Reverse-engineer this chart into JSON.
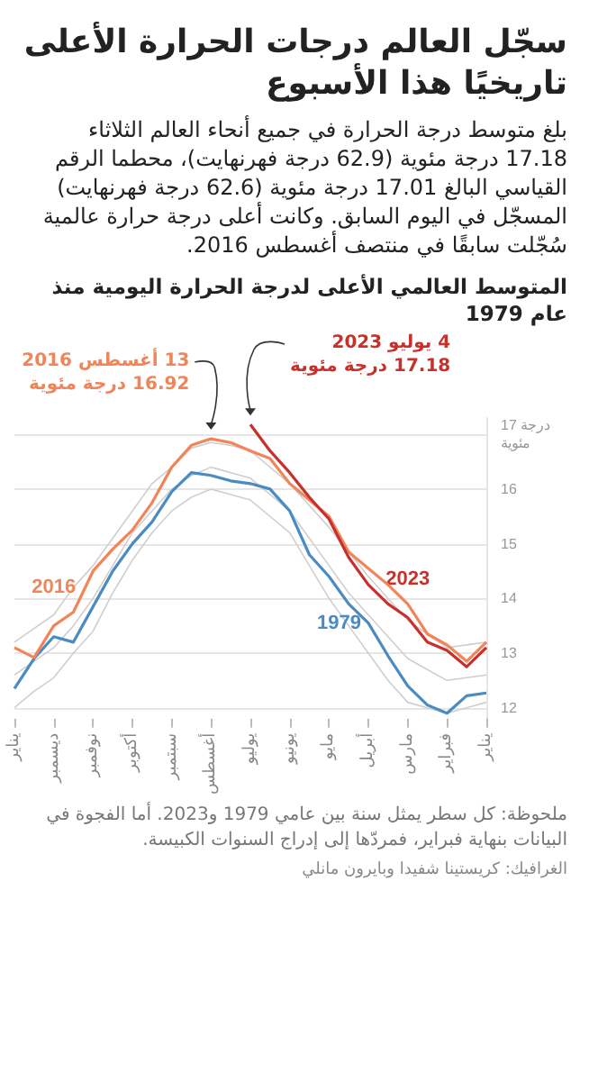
{
  "chart_data": {
    "type": "line",
    "title": "سجّل العالم درجات الحرارة الأعلى تاريخيًا هذا الأسبوع",
    "subtitle": "بلغ متوسط درجة الحرارة في جميع أنحاء العالم الثلاثاء 17.18 درجة مئوية (62.9 درجة فهرنهايت)، محطما الرقم القياسي البالغ 17.01 درجة مئوية (62.6 درجة فهرنهايت) المسجّل في اليوم السابق. وكانت أعلى درجة حرارة عالمية سُجّلت سابقًا في منتصف أغسطس 2016.",
    "annotations": [
      "المتوسط العالمي الأعلى لدرجة الحرارة اليومية منذ عام 1979",
      {
        "text": "13 أغسطس 2016\n16.92 درجة مئوية",
        "x": "أغسطس",
        "y": 16.92
      },
      {
        "text": "4 يوليو 2023\n17.18 درجة مئوية",
        "x": "يوليو",
        "y": 17.18
      },
      "ملحوظة: كل سطر يمثل سنة بين عامي 1979 و2023. أما الفجوة في البيانات بنهاية فبراير، فمردّها إلى إدراج السنوات الكبيسة.",
      "الغرافيك: كريستينا شفيدا وبايرون مانلي"
    ],
    "categories": [
      "يناير",
      null,
      "ديسمبر",
      null,
      "نوفمبر",
      null,
      "أكتوبر",
      null,
      "سبتمبر",
      null,
      "أغسطس",
      null,
      "يوليو",
      null,
      "يونيو",
      null,
      "مايو",
      null,
      "أبريل",
      null,
      "مارس",
      null,
      "فبراير",
      null,
      "يناير"
    ],
    "ylim": [
      11.8,
      17.3
    ],
    "yticks": [
      12,
      13,
      14,
      15,
      16,
      {
        "value": 17,
        "label": "17 درجة مئوية"
      }
    ],
    "grid": "y",
    "marker": "none",
    "line_style": "solid",
    "series": [
      {
        "color": "#cfcfcf",
        "values": [
          12.0,
          12.3,
          12.55,
          13.0,
          13.4,
          14.1,
          14.7,
          15.2,
          15.6,
          15.85,
          16.0,
          15.9,
          15.8,
          15.5,
          15.2,
          14.6,
          14.0,
          13.5,
          13.0,
          12.5,
          12.1,
          12.0,
          11.9,
          12.0,
          12.1
        ]
      },
      {
        "color": "#cfcfcf",
        "values": [
          12.6,
          12.85,
          13.1,
          13.5,
          14.0,
          14.6,
          15.2,
          15.6,
          16.0,
          16.25,
          16.4,
          16.3,
          16.2,
          15.9,
          15.6,
          15.1,
          14.6,
          14.1,
          13.7,
          13.3,
          12.9,
          12.7,
          12.5,
          12.55,
          12.6
        ]
      },
      {
        "color": "#cfcfcf",
        "values": [
          13.2,
          13.45,
          13.7,
          14.2,
          14.6,
          15.1,
          15.6,
          16.1,
          16.4,
          16.75,
          16.85,
          16.8,
          16.7,
          16.4,
          16.1,
          15.7,
          15.3,
          14.85,
          14.4,
          14.0,
          13.6,
          13.35,
          13.1,
          13.15,
          13.2
        ]
      },
      {
        "name": "1979",
        "color": "#4a8bc2",
        "values": [
          12.35,
          12.9,
          13.3,
          13.2,
          13.85,
          14.5,
          15.0,
          15.4,
          15.95,
          16.3,
          16.25,
          16.15,
          16.1,
          16.0,
          15.6,
          14.8,
          14.4,
          13.9,
          13.55,
          12.95,
          12.4,
          12.05,
          11.9,
          12.22,
          12.27
        ]
      },
      {
        "name": "2016",
        "color": "#f0855a",
        "values": [
          13.1,
          12.92,
          13.5,
          13.75,
          14.5,
          14.9,
          15.25,
          15.75,
          16.4,
          16.8,
          16.92,
          16.85,
          16.7,
          16.56,
          16.1,
          15.8,
          15.5,
          14.85,
          14.55,
          14.25,
          13.9,
          13.35,
          13.15,
          12.85,
          13.2
        ]
      },
      {
        "name": "2023",
        "color": "#c8312b",
        "values": [
          null,
          null,
          null,
          null,
          null,
          null,
          null,
          null,
          null,
          null,
          null,
          null,
          17.18,
          16.7,
          16.3,
          15.85,
          15.45,
          14.75,
          14.25,
          13.9,
          13.65,
          13.2,
          13.05,
          12.75,
          13.1
        ]
      }
    ]
  }
}
